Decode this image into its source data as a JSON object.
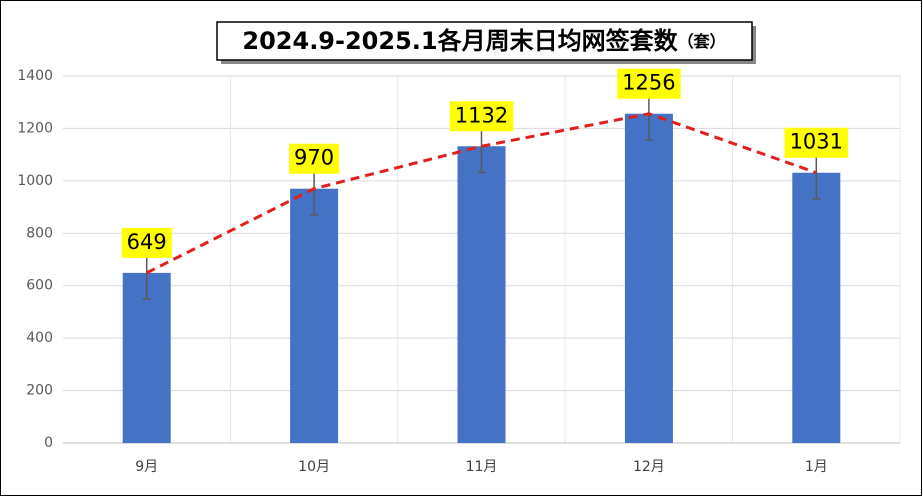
{
  "chart_data": {
    "type": "bar_line",
    "title": "2024.9-2025.1各月周末日均网签套数",
    "title_unit": "（套）",
    "categories": [
      "9月",
      "10月",
      "11月",
      "12月",
      "1月"
    ],
    "series": [
      {
        "type": "bar",
        "color": "#4472c4",
        "values": [
          649,
          970,
          1132,
          1256,
          1031
        ],
        "errors": [
          100,
          100,
          100,
          100,
          100
        ],
        "error_color": "#595959"
      },
      {
        "type": "line",
        "color": "#e0201e",
        "dashed": true,
        "values": [
          649,
          970,
          1132,
          1256,
          1031
        ],
        "label_background": "#ffff00"
      }
    ],
    "ylim": [
      0,
      1400
    ],
    "yticks": [
      0,
      200,
      400,
      600,
      800,
      1000,
      1200,
      1400
    ],
    "grid": true
  }
}
